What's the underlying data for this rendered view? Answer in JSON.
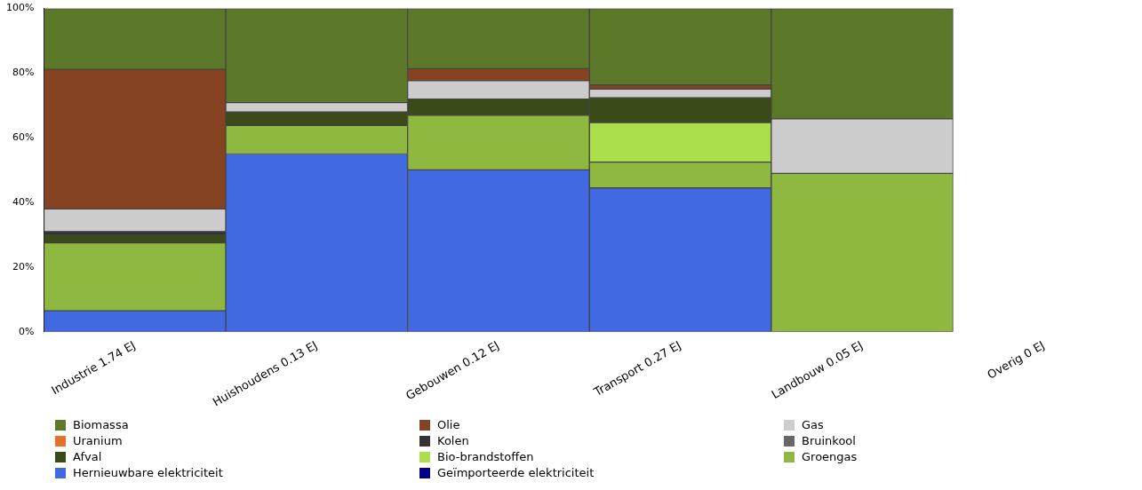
{
  "chart_data": {
    "type": "bar",
    "stacked": true,
    "grid": false,
    "legend": "bottom left",
    "categories": [
      "Industrie 1.74 EJ",
      "Huishoudens 0.13 EJ",
      "Gebouwen 0.12 EJ",
      "Transport 0.27 EJ",
      "Landbouw 0.05 EJ",
      "Overig 0 EJ"
    ],
    "ylim": [
      0,
      100
    ],
    "yticks": [
      {
        "value": 0,
        "label": "0%"
      },
      {
        "value": 20,
        "label": "20%"
      },
      {
        "value": 40,
        "label": "40%"
      },
      {
        "value": 60,
        "label": "60%"
      },
      {
        "value": 80,
        "label": "80%"
      },
      {
        "value": 100,
        "label": "100%"
      }
    ],
    "series": [
      {
        "name": "Geïmporteerde elektriciteit",
        "color": "#00008b",
        "values": [
          null,
          null,
          null,
          null,
          null,
          null
        ]
      },
      {
        "name": "Hernieuwbare elektriciteit",
        "color": "#4169e1",
        "values": [
          6.5,
          55.0,
          50.1,
          44.5,
          null,
          null
        ]
      },
      {
        "name": "Groengas",
        "color": "#8fb840",
        "values": [
          21.0,
          8.8,
          16.9,
          8.0,
          49.0,
          null
        ]
      },
      {
        "name": "Bio-brandstoffen",
        "color": "#aade4a",
        "values": [
          null,
          null,
          null,
          12.2,
          null,
          null
        ]
      },
      {
        "name": "Afval",
        "color": "#3a4a18",
        "values": [
          2.4,
          4.2,
          5.0,
          7.7,
          null,
          null
        ]
      },
      {
        "name": "Bruinkool",
        "color": "#666666",
        "values": [
          null,
          null,
          null,
          null,
          null,
          null
        ]
      },
      {
        "name": "Kolen",
        "color": "#333333",
        "values": [
          1.1,
          null,
          null,
          null,
          null,
          null
        ]
      },
      {
        "name": "Uranium",
        "color": "#e8702a",
        "values": [
          null,
          null,
          null,
          null,
          null,
          null
        ]
      },
      {
        "name": "Gas",
        "color": "#cccccc",
        "values": [
          7.0,
          2.9,
          5.7,
          2.7,
          16.9,
          null
        ]
      },
      {
        "name": "Olie",
        "color": "#864322",
        "values": [
          43.2,
          null,
          3.7,
          1.3,
          null,
          null
        ]
      },
      {
        "name": "Biomassa",
        "color": "#5c7829",
        "values": [
          18.8,
          29.1,
          18.6,
          23.6,
          34.1,
          null
        ]
      }
    ]
  }
}
